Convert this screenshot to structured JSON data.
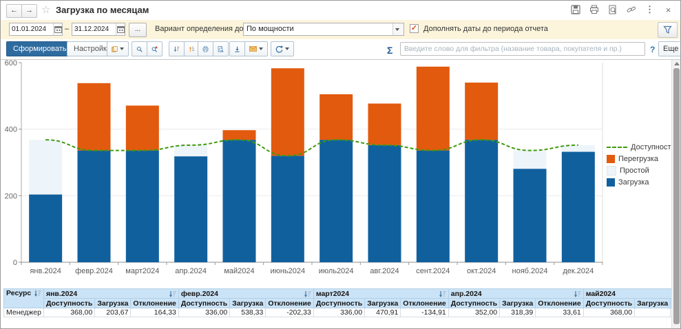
{
  "titlebar": {
    "title": "Загрузка по месяцам",
    "back_icon": "←",
    "forward_icon": "→",
    "star_icon": "☆",
    "kebab_icon": "⋮",
    "close_icon": "×"
  },
  "filterbar": {
    "date_from": "01.01.2024",
    "date_to": "31.12.2024",
    "range_dash": "–",
    "more_dates_label": "...",
    "availability_label": "Вариант определения доступности:",
    "availability_value": "По мощности",
    "append_dates_label": "Дополнять даты до периода отчета",
    "append_dates_checked": "✓"
  },
  "toolbar": {
    "generate_label": "Сформировать",
    "settings_label": "Настройки...",
    "sum_label": "Σ",
    "filter_placeholder": "Введите слово для фильтра (название товара, покупателя и пр.)",
    "help_label": "?",
    "more_label": "Еще"
  },
  "chart_data": {
    "type": "bar",
    "subtype": "stacked-bars-with-availability-line",
    "title": "",
    "categories": [
      "янв.2024",
      "февр.2024",
      "март2024",
      "апр.2024",
      "май2024",
      "июнь2024",
      "июль2024",
      "авг.2024",
      "сент.2024",
      "окт.2024",
      "нояб.2024",
      "дек.2024"
    ],
    "series": [
      {
        "name": "Доступность",
        "type": "line",
        "color": "#3F9A0B",
        "values": [
          368,
          336,
          336,
          352,
          368,
          320,
          368,
          352,
          336,
          368,
          336,
          352
        ]
      },
      {
        "name": "Перегрузка",
        "type": "bar",
        "color": "#E25A0E",
        "values": [
          0,
          202.33,
          134.91,
          0,
          29,
          263,
          137,
          125,
          252,
          172,
          0,
          0
        ]
      },
      {
        "name": "Простой",
        "type": "bar",
        "color": "#EDF4FA",
        "values": [
          164.33,
          0,
          0,
          33.61,
          0,
          0,
          0,
          0,
          0,
          0,
          55,
          20
        ]
      },
      {
        "name": "Загрузка",
        "type": "bar",
        "color": "#11609E",
        "values": [
          203.67,
          336,
          336,
          318.39,
          368,
          320,
          368,
          352,
          336,
          368,
          281,
          332
        ]
      }
    ],
    "load_totals": [
      203.67,
      538.33,
      470.91,
      318.39,
      397,
      583,
      505,
      477,
      588,
      540,
      281,
      332
    ],
    "ylim": [
      0,
      600
    ],
    "yticks": [
      0,
      200,
      400,
      600
    ],
    "grid": "horizontal",
    "legend_position": "right",
    "legend": [
      "Доступность",
      "Перегрузка",
      "Простой",
      "Загрузка"
    ]
  },
  "table": {
    "resource_header": "Ресурс",
    "col_labels": [
      "Доступность",
      "Загрузка",
      "Отклонение"
    ],
    "months": [
      "янв.2024",
      "февр.2024",
      "март2024",
      "апр.2024",
      "май2024"
    ],
    "rows": [
      {
        "resource": "Менеджер",
        "cells": [
          [
            "368,00",
            "203,67",
            "164,33"
          ],
          [
            "336,00",
            "538,33",
            "-202,33"
          ],
          [
            "336,00",
            "470,91",
            "-134,91"
          ],
          [
            "352,00",
            "318,39",
            "33,61"
          ],
          [
            "368,00",
            "",
            ""
          ]
        ]
      }
    ]
  }
}
